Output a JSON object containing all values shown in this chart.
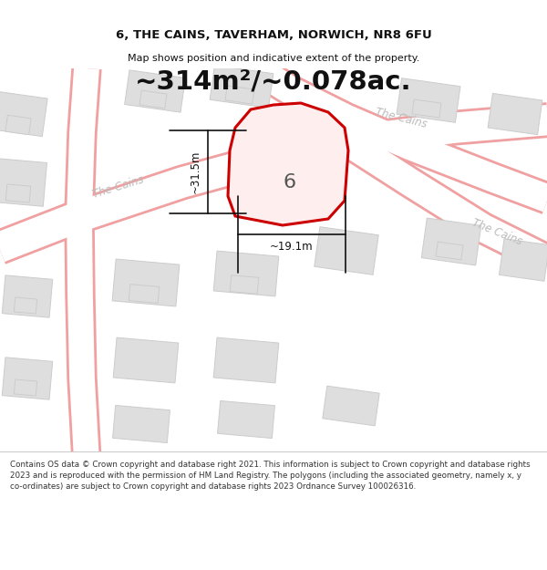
{
  "title_line1": "6, THE CAINS, TAVERHAM, NORWICH, NR8 6FU",
  "title_line2": "Map shows position and indicative extent of the property.",
  "area_text": "~314m²/~0.078ac.",
  "label_6": "6",
  "dim_height": "~31.5m",
  "dim_width": "~19.1m",
  "footer_text": "Contains OS data © Crown copyright and database right 2021. This information is subject to Crown copyright and database rights 2023 and is reproduced with the permission of HM Land Registry. The polygons (including the associated geometry, namely x, y co-ordinates) are subject to Crown copyright and database rights 2023 Ordnance Survey 100026316.",
  "bg_color": "#ffffff",
  "map_bg": "#f5f5f5",
  "road_color": "#f0a0a0",
  "road_fill": "#ffffff",
  "building_fill": "#dedede",
  "building_edge": "#cccccc",
  "highlight_color": "#cc0000",
  "highlight_fill": "#ffeeee",
  "street_label_color": "#bbbbbb",
  "dim_color": "#111111",
  "title_color": "#111111",
  "area_color": "#111111",
  "footer_color": "#333333",
  "title_fontsize": 9.5,
  "subtitle_fontsize": 8.0,
  "area_fontsize": 21,
  "label_fontsize": 16,
  "dim_fontsize": 8.5,
  "street_fontsize": 8.5,
  "footer_fontsize": 6.3
}
